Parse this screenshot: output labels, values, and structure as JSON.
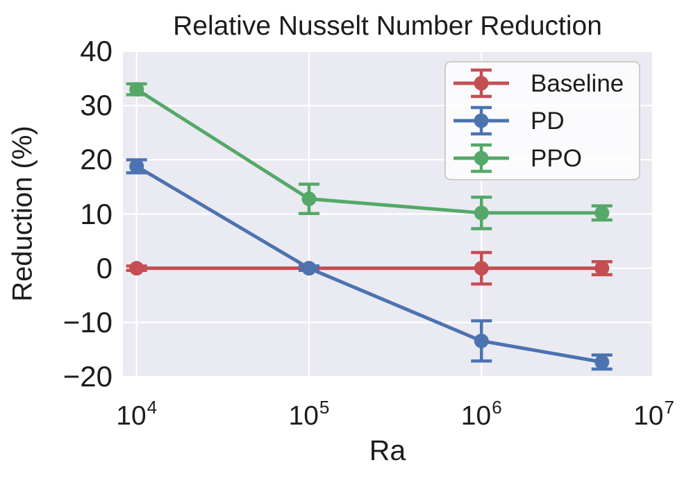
{
  "chart_data": {
    "type": "line",
    "title": "Relative Nusselt Number Reduction",
    "xlabel": "Ra",
    "ylabel": "Reduction (%)",
    "x_scale": "log",
    "x": [
      10000,
      100000,
      1000000,
      5000000
    ],
    "xlim": [
      8330,
      9770000
    ],
    "ylim": [
      -20,
      40
    ],
    "grid": true,
    "legend_position": "upper right",
    "x_ticks": [
      {
        "value": 10000,
        "base": "10",
        "exp": "4"
      },
      {
        "value": 100000,
        "base": "10",
        "exp": "5"
      },
      {
        "value": 1000000,
        "base": "10",
        "exp": "6"
      },
      {
        "value": 10000000,
        "base": "10",
        "exp": "7"
      }
    ],
    "y_ticks": [
      {
        "value": 40,
        "label": "40"
      },
      {
        "value": 30,
        "label": "30"
      },
      {
        "value": 20,
        "label": "20"
      },
      {
        "value": 10,
        "label": "10"
      },
      {
        "value": 0,
        "label": "0"
      },
      {
        "value": -10,
        "label": "−10"
      },
      {
        "value": -20,
        "label": "−20"
      }
    ],
    "series": [
      {
        "name": "Baseline",
        "color": "#c44e52",
        "values": [
          0,
          0,
          0,
          0
        ],
        "errors": [
          0.4,
          0.4,
          2.9,
          1.2
        ]
      },
      {
        "name": "PD",
        "color": "#4c72b0",
        "values": [
          18.8,
          0,
          -13.4,
          -17.3
        ],
        "errors": [
          1.2,
          0.4,
          3.7,
          1.3
        ]
      },
      {
        "name": "PPO",
        "color": "#55a868",
        "values": [
          33.0,
          12.8,
          10.2,
          10.2
        ],
        "errors": [
          1.0,
          2.7,
          2.9,
          1.3
        ]
      }
    ]
  },
  "colors": {
    "figure_bg": "#ffffff",
    "plot_bg": "#eaeaf2",
    "grid": "#ffffff",
    "text": "#1c1c1c",
    "legend_border": "#cccccc",
    "legend_bg": "#ffffff"
  }
}
